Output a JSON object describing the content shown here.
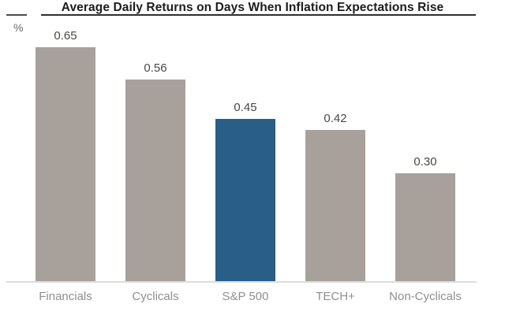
{
  "header": {
    "title": "Average Daily Returns on Days When Inflation Expectations Rise",
    "unit_label": "%"
  },
  "chart_data": {
    "type": "bar",
    "title": "Average Daily Returns on Days When Inflation Expectations Rise",
    "categories": [
      "Financials",
      "Cyclicals",
      "S&P 500",
      "TECH+",
      "Non-Cyclicals"
    ],
    "values": [
      0.65,
      0.56,
      0.45,
      0.42,
      0.3
    ],
    "value_labels": [
      "0.65",
      "0.56",
      "0.45",
      "0.42",
      "0.30"
    ],
    "xlabel": "",
    "ylabel": "%",
    "ylim": [
      0,
      0.78
    ],
    "grid": false,
    "legend": "none",
    "highlight_category": "S&P 500",
    "colors": {
      "bar": "#a8a19b",
      "highlight": "#295e89",
      "title": "#1c1c1c",
      "value_label": "#484848",
      "category_label": "#8f8f8f",
      "baseline": "#dcdcdc",
      "title_rule": "#2e2e2e"
    }
  }
}
